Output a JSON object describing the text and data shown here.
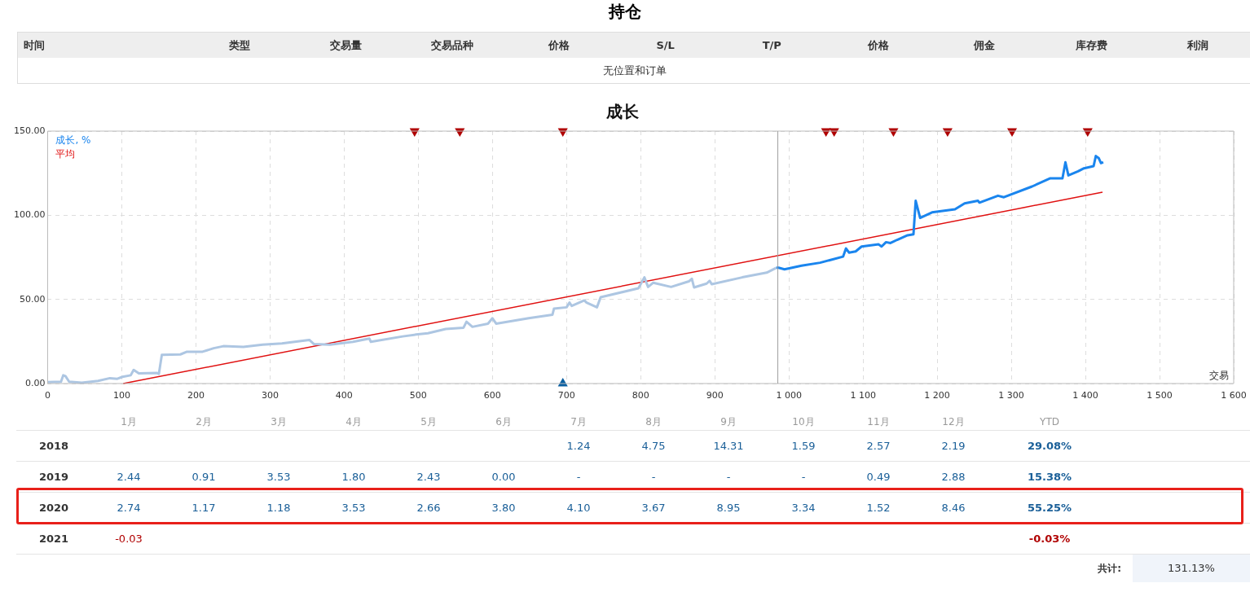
{
  "chart_data": [
    {
      "type": "other",
      "title": "持仓",
      "categories": [
        "时间",
        "类型",
        "交易量",
        "交易品种",
        "价格",
        "S/L",
        "T/P",
        "价格",
        "佣金",
        "库存费",
        "利润"
      ],
      "annotations": [
        "无位置和订单"
      ]
    },
    {
      "type": "line",
      "title": "成长",
      "xlabel": "交易",
      "xlim": [
        0,
        1600
      ],
      "ylim": [
        0,
        150
      ],
      "xticks": [
        0,
        100,
        200,
        300,
        400,
        500,
        600,
        700,
        800,
        900,
        {
          "value": 1000,
          "label": "1 000"
        },
        {
          "value": 1100,
          "label": "1 100"
        },
        {
          "value": 1200,
          "label": "1 200"
        },
        {
          "value": 1300,
          "label": "1 300"
        },
        {
          "value": 1400,
          "label": "1 400"
        },
        {
          "value": 1500,
          "label": "1 500"
        },
        {
          "value": 1600,
          "label": "1 600"
        }
      ],
      "yticks": [
        {
          "value": 0,
          "label": "0.00"
        },
        {
          "value": 50,
          "label": "50.00"
        },
        {
          "value": 100,
          "label": "100.00"
        },
        {
          "value": 150,
          "label": "150.00"
        }
      ],
      "grid": true,
      "legend": "top left",
      "marker": "none",
      "ref_lines": [
        {
          "axis": "x",
          "value": 985,
          "color": "#a0a0a0"
        }
      ],
      "series": [
        {
          "color": "#adc6e2",
          "x": [
            0,
            18,
            21,
            24,
            29,
            46,
            68,
            84,
            94,
            101,
            112,
            116,
            123,
            147,
            150,
            154,
            179,
            188,
            209,
            224,
            237,
            264,
            290,
            316,
            344,
            353,
            359,
            381,
            412,
            434,
            436,
            479,
            497,
            513,
            537,
            561,
            565,
            573,
            594,
            600,
            605,
            649,
            681,
            683,
            700,
            704,
            707,
            724,
            727,
            741,
            746,
            797,
            805,
            810,
            817,
            841,
            865,
            869,
            872,
            889,
            893,
            896,
            937,
            970,
            983
          ],
          "values": [
            0.8,
            1.1,
            4.9,
            4.4,
            1.1,
            0.5,
            1.6,
            3.2,
            2.8,
            4,
            4.9,
            8.1,
            6,
            6.3,
            5.7,
            17,
            17.3,
            18.9,
            18.9,
            21,
            22.2,
            21.8,
            23.1,
            23.8,
            25.4,
            25.9,
            23.5,
            23.1,
            24.8,
            26.7,
            24.8,
            28,
            29.1,
            29.9,
            32.4,
            33.2,
            36.7,
            33.7,
            35.6,
            38.8,
            35.6,
            38.8,
            40.9,
            44.5,
            45.3,
            48.1,
            46.1,
            49.4,
            48.1,
            45.3,
            51.3,
            56.6,
            63.1,
            57.4,
            59.9,
            57.4,
            60.7,
            62.3,
            57.1,
            59.4,
            61,
            59,
            63.1,
            65.9,
            68.8
          ]
        },
        {
          "name": "成长, %",
          "color": "#1a85ee",
          "x": [
            983,
            986,
            994,
            1017,
            1042,
            1073,
            1077,
            1081,
            1090,
            1098,
            1121,
            1125,
            1131,
            1137,
            1146,
            1160,
            1168,
            1171,
            1177,
            1193,
            1224,
            1237,
            1255,
            1257,
            1282,
            1290,
            1328,
            1352,
            1369,
            1373,
            1377,
            1390,
            1398,
            1411,
            1414,
            1418,
            1421,
            1424
          ],
          "values": [
            68.8,
            68.8,
            67.9,
            70,
            71.8,
            75.4,
            80.3,
            77.8,
            78.5,
            81.4,
            82.7,
            81.4,
            84,
            83.5,
            85.4,
            88.1,
            88.7,
            108.6,
            98.4,
            101.7,
            103.5,
            107.1,
            108.6,
            107.5,
            111.6,
            110.7,
            117.1,
            121.9,
            121.9,
            131.5,
            123.7,
            126.1,
            127.9,
            129.2,
            135.2,
            133.9,
            131,
            131.6
          ]
        },
        {
          "name": "平均",
          "color": "#e01010",
          "x": [
            102,
            1423
          ],
          "values": [
            0,
            113.7
          ]
        },
        {
          "type": "scatter",
          "marker": "triangle",
          "color": "#b00000",
          "x": [
            495,
            556,
            695,
            1050,
            1061,
            1141,
            1214,
            1301,
            1403
          ],
          "values": [
            150,
            150,
            150,
            150,
            150,
            150,
            150,
            150,
            150
          ]
        },
        {
          "type": "scatter",
          "marker": "triangle",
          "color": "#0a5fa0",
          "x": [
            695
          ],
          "values": [
            0
          ]
        }
      ]
    },
    {
      "type": "heatmap",
      "categories": [
        "1月",
        "2月",
        "3月",
        "4月",
        "5月",
        "6月",
        "7月",
        "8月",
        "9月",
        "10月",
        "11月",
        "12月",
        "YTD"
      ],
      "y_categories": [
        "2018",
        "2019",
        "2020",
        "2021"
      ],
      "colors": [
        "#1a5f98",
        "#b00000"
      ],
      "cells": [
        [
          null,
          null,
          null,
          null,
          null,
          null,
          1.24,
          4.75,
          14.31,
          1.59,
          2.57,
          2.19,
          29.08
        ],
        [
          2.44,
          0.91,
          3.53,
          1.8,
          2.43,
          0,
          null,
          null,
          null,
          null,
          0.49,
          2.88,
          15.38
        ],
        [
          2.74,
          1.17,
          1.18,
          3.53,
          2.66,
          3.8,
          4.1,
          3.67,
          8.95,
          3.34,
          1.52,
          8.46,
          55.25
        ],
        [
          -0.03,
          null,
          null,
          null,
          null,
          null,
          null,
          null,
          null,
          null,
          null,
          null,
          -0.03
        ]
      ],
      "cell_labels": [
        [
          null,
          null,
          null,
          null,
          null,
          null,
          "1.24",
          "4.75",
          "14.31",
          "1.59",
          "2.57",
          "2.19",
          "29.08%"
        ],
        [
          "2.44",
          "0.91",
          "3.53",
          "1.80",
          "2.43",
          "0.00",
          "-",
          "-",
          "-",
          "-",
          "0.49",
          "2.88",
          "15.38%"
        ],
        [
          "2.74",
          "1.17",
          "1.18",
          "3.53",
          "2.66",
          "3.80",
          "4.10",
          "3.67",
          "8.95",
          "3.34",
          "1.52",
          "8.46",
          "55.25%"
        ],
        [
          "-0.03",
          null,
          null,
          null,
          null,
          null,
          null,
          null,
          null,
          null,
          null,
          null,
          "-0.03%"
        ]
      ],
      "annotations": [
        "共计:",
        "131.13%"
      ]
    }
  ]
}
